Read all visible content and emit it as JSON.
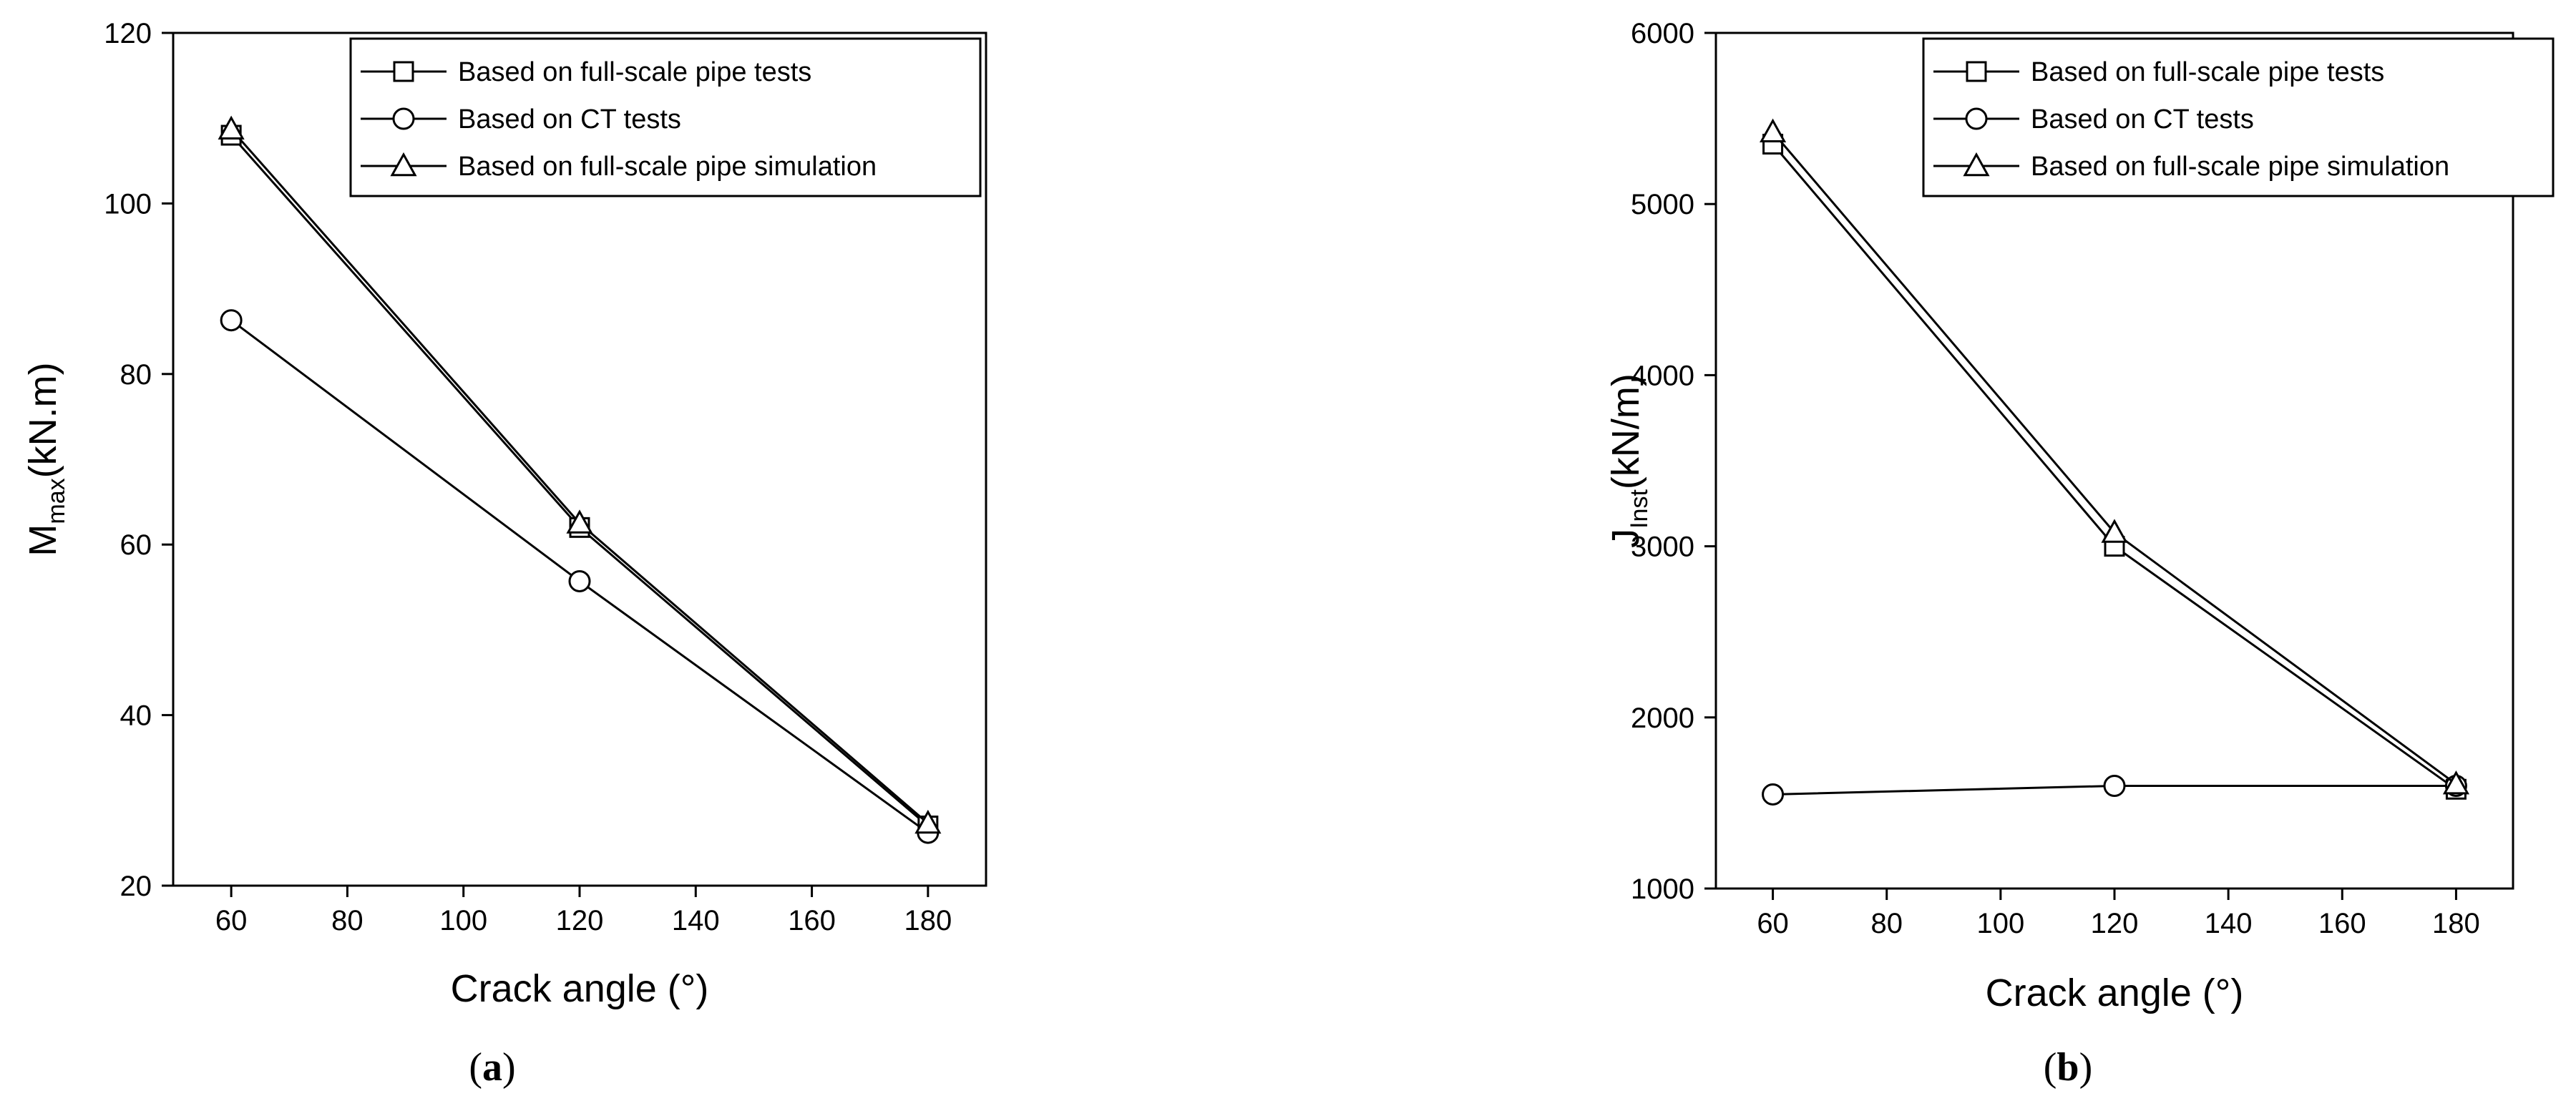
{
  "chart_data": [
    {
      "type": "line",
      "panel": "a",
      "panel_label_open": "(",
      "panel_label_letter": "a",
      "panel_label_close": ")",
      "xlabel": "Crack angle (°)",
      "ylabel_main": "M",
      "ylabel_sub": "max",
      "ylabel_unit": "(kN.m)",
      "xlim": [
        50,
        190
      ],
      "ylim": [
        20,
        120
      ],
      "xticks": [
        60,
        80,
        100,
        120,
        140,
        160,
        180
      ],
      "yticks": [
        20,
        40,
        60,
        80,
        100,
        120
      ],
      "legend_position": "top-right",
      "series": [
        {
          "name": "Based on full-scale pipe tests",
          "marker": "square",
          "x": [
            60,
            120,
            180
          ],
          "y": [
            108,
            62,
            27
          ]
        },
        {
          "name": "Based on CT tests",
          "marker": "circle",
          "x": [
            60,
            120,
            180
          ],
          "y": [
            86.3,
            55.7,
            26.2
          ]
        },
        {
          "name": "Based on full-scale pipe simulation",
          "marker": "triangle",
          "x": [
            60,
            120,
            180
          ],
          "y": [
            108.7,
            62.5,
            27.3
          ]
        }
      ]
    },
    {
      "type": "line",
      "panel": "b",
      "panel_label_open": "(",
      "panel_label_letter": "b",
      "panel_label_close": ")",
      "xlabel": "Crack angle (°)",
      "ylabel_main": "J",
      "ylabel_sub": "Inst",
      "ylabel_unit": "(kN/m)",
      "xlim": [
        50,
        190
      ],
      "ylim": [
        1000,
        6000
      ],
      "xticks": [
        60,
        80,
        100,
        120,
        140,
        160,
        180
      ],
      "yticks": [
        1000,
        2000,
        3000,
        4000,
        5000,
        6000
      ],
      "legend_position": "top-right",
      "series": [
        {
          "name": "Based on full-scale pipe tests",
          "marker": "square",
          "x": [
            60,
            120,
            180
          ],
          "y": [
            5350,
            3000,
            1580
          ]
        },
        {
          "name": "Based on CT tests",
          "marker": "circle",
          "x": [
            60,
            120,
            180
          ],
          "y": [
            1550,
            1600,
            1600
          ]
        },
        {
          "name": "Based on full-scale pipe simulation",
          "marker": "triangle",
          "x": [
            60,
            120,
            180
          ],
          "y": [
            5420,
            3080,
            1610
          ]
        }
      ]
    }
  ]
}
